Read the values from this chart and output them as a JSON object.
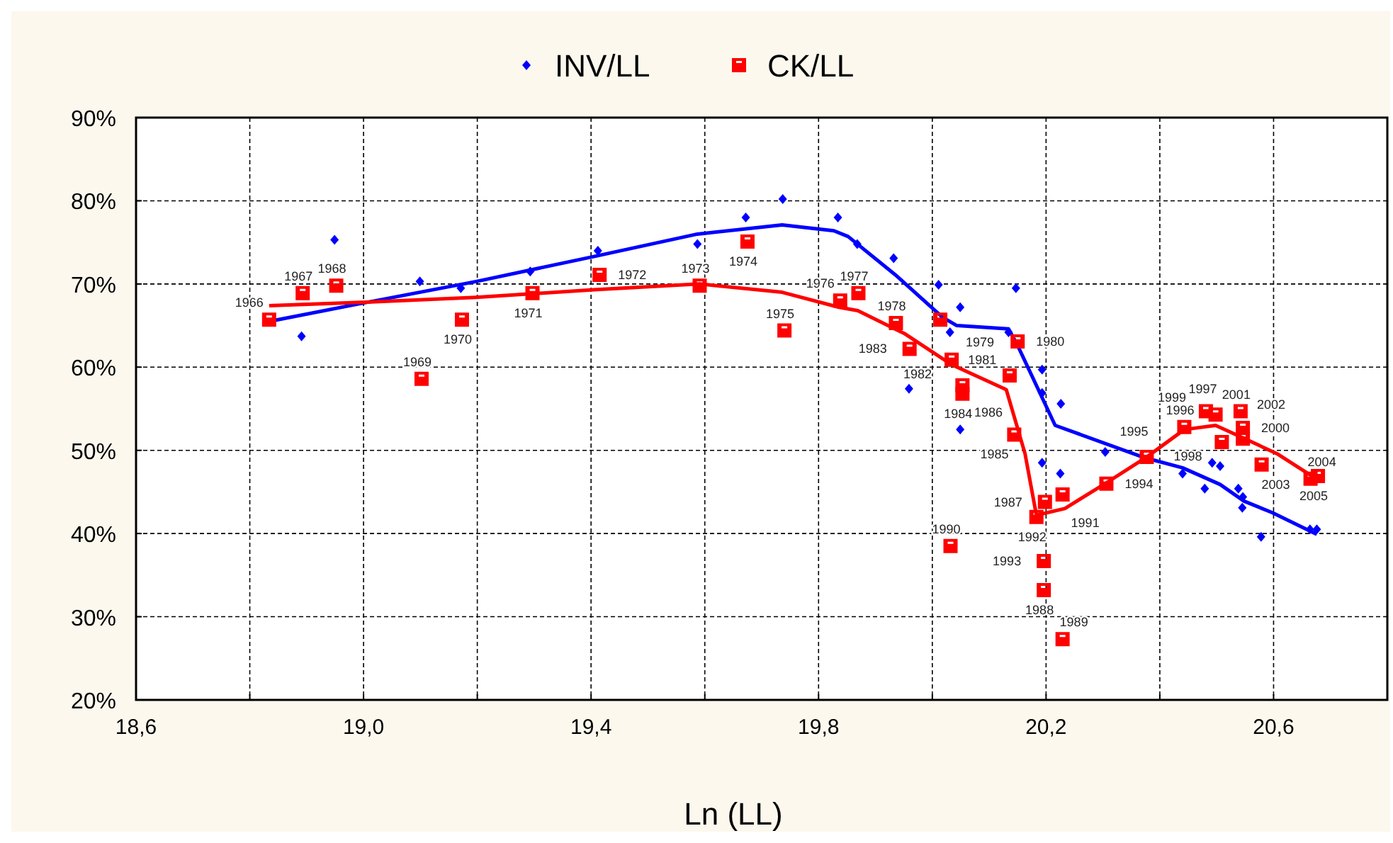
{
  "chart_data": {
    "type": "scatter",
    "xlabel": "Ln (LL)",
    "xlim": [
      18.6,
      20.8
    ],
    "xticks": [
      {
        "value": 18.6,
        "label": "18,6"
      },
      {
        "value": 18.8,
        "label": null
      },
      {
        "value": 19.0,
        "label": "19,0"
      },
      {
        "value": 19.2,
        "label": null
      },
      {
        "value": 19.4,
        "label": "19,4"
      },
      {
        "value": 19.6,
        "label": null
      },
      {
        "value": 19.8,
        "label": "19,8"
      },
      {
        "value": 20.0,
        "label": null
      },
      {
        "value": 20.2,
        "label": "20,2"
      },
      {
        "value": 20.4,
        "label": null
      },
      {
        "value": 20.6,
        "label": "20,6"
      },
      {
        "value": 20.8,
        "label": null
      }
    ],
    "ylim": [
      20,
      90
    ],
    "yticks": [
      {
        "value": 20,
        "label": "20%"
      },
      {
        "value": 30,
        "label": "30%"
      },
      {
        "value": 40,
        "label": "40%"
      },
      {
        "value": 50,
        "label": "50%"
      },
      {
        "value": 60,
        "label": "60%"
      },
      {
        "value": 70,
        "label": "70%"
      },
      {
        "value": 80,
        "label": "80%"
      },
      {
        "value": 90,
        "label": "90%"
      }
    ],
    "grid": true,
    "legend": "top",
    "series": [
      {
        "name": "INV/LL",
        "marker": "diamond",
        "color": "#0000ff",
        "x": [
          18.891,
          18.949,
          19.099,
          19.171,
          19.293,
          19.412,
          19.587,
          19.672,
          19.737,
          19.834,
          19.868,
          19.932,
          19.959,
          20.011,
          20.031,
          20.049,
          20.049,
          20.134,
          20.147,
          20.193,
          20.193,
          20.193,
          20.225,
          20.226,
          20.304,
          20.44,
          20.479,
          20.492,
          20.506,
          20.538,
          20.545,
          20.546,
          20.578,
          20.664,
          20.676
        ],
        "values": [
          63.7,
          75.3,
          70.3,
          69.5,
          71.5,
          74.0,
          74.8,
          78.0,
          80.2,
          78.0,
          74.8,
          73.1,
          57.4,
          69.9,
          64.2,
          67.2,
          52.5,
          64.2,
          69.5,
          59.7,
          56.9,
          48.5,
          47.2,
          55.6,
          49.8,
          47.2,
          45.4,
          48.5,
          48.1,
          45.4,
          43.1,
          44.4,
          39.6,
          40.5,
          40.5
        ]
      },
      {
        "name": "CK/LL",
        "marker": "square",
        "color": "#ff0000",
        "x": [
          18.834,
          18.893,
          18.952,
          19.102,
          19.173,
          19.297,
          19.415,
          19.591,
          19.675,
          19.74,
          19.838,
          19.87,
          19.936,
          20.014,
          20.15,
          20.053,
          20.034,
          19.96,
          20.053,
          20.144,
          20.136,
          20.198,
          20.196,
          20.229,
          20.032,
          20.229,
          20.183,
          20.196,
          20.306,
          20.377,
          20.443,
          20.498,
          20.509,
          20.481,
          20.546,
          20.542,
          20.546,
          20.579,
          20.665,
          20.678
        ],
        "values": [
          65.7,
          68.9,
          69.8,
          58.6,
          65.7,
          68.9,
          71.1,
          69.8,
          75.1,
          64.4,
          68.0,
          68.9,
          65.3,
          65.7,
          63.1,
          57.8,
          60.9,
          62.2,
          56.8,
          51.9,
          59.0,
          43.8,
          33.2,
          27.3,
          38.5,
          44.7,
          42.0,
          36.7,
          46.0,
          49.2,
          52.8,
          54.3,
          51.0,
          54.7,
          52.7,
          54.7,
          51.4,
          48.3,
          46.6,
          46.9
        ]
      },
      {
        "type": "line",
        "marker": "none",
        "color": "#0000ff",
        "x": [
          18.834,
          18.999,
          19.198,
          19.405,
          19.587,
          19.736,
          19.827,
          19.852,
          19.935,
          20.018,
          20.043,
          20.134,
          20.15,
          20.216,
          20.374,
          20.44,
          20.506,
          20.548,
          20.598,
          20.676
        ],
        "values": [
          65.5,
          67.7,
          70.3,
          73.3,
          76.0,
          77.1,
          76.4,
          75.7,
          71.1,
          66.0,
          65.0,
          64.6,
          62.6,
          53.0,
          49.1,
          47.9,
          45.9,
          43.9,
          42.5,
          39.9
        ]
      },
      {
        "type": "line",
        "marker": "none",
        "color": "#ff0000",
        "x": [
          18.834,
          18.999,
          19.198,
          19.405,
          19.591,
          19.736,
          19.836,
          19.869,
          19.952,
          20.034,
          20.13,
          20.163,
          20.183,
          20.233,
          20.306,
          20.377,
          20.443,
          20.498,
          20.546,
          20.606,
          20.672
        ],
        "values": [
          67.4,
          67.8,
          68.4,
          69.3,
          70.0,
          69.0,
          67.2,
          66.8,
          64.0,
          60.3,
          57.3,
          49.6,
          42.2,
          43.0,
          46.1,
          49.2,
          52.5,
          53.0,
          51.5,
          49.6,
          46.7
        ]
      }
    ],
    "annotations": [
      {
        "text": "1966",
        "x": 18.834,
        "y": 65.7
      },
      {
        "text": "1967",
        "x": 18.893,
        "y": 68.9
      },
      {
        "text": "1968",
        "x": 18.952,
        "y": 69.8
      },
      {
        "text": "1969",
        "x": 19.102,
        "y": 58.6
      },
      {
        "text": "1970",
        "x": 19.173,
        "y": 65.7
      },
      {
        "text": "1971",
        "x": 19.297,
        "y": 68.9
      },
      {
        "text": "1972",
        "x": 19.415,
        "y": 71.1
      },
      {
        "text": "1973",
        "x": 19.591,
        "y": 69.8
      },
      {
        "text": "1974",
        "x": 19.675,
        "y": 75.1
      },
      {
        "text": "1975",
        "x": 19.74,
        "y": 64.4
      },
      {
        "text": "1976",
        "x": 19.838,
        "y": 68.0
      },
      {
        "text": "1977",
        "x": 19.87,
        "y": 68.9
      },
      {
        "text": "1978",
        "x": 19.936,
        "y": 65.3
      },
      {
        "text": "1979",
        "x": 20.014,
        "y": 65.7
      },
      {
        "text": "1980",
        "x": 20.15,
        "y": 63.1
      },
      {
        "text": "1981",
        "x": 20.053,
        "y": 57.8
      },
      {
        "text": "1982",
        "x": 20.034,
        "y": 60.9
      },
      {
        "text": "1983",
        "x": 19.96,
        "y": 62.2
      },
      {
        "text": "1984",
        "x": 20.053,
        "y": 56.8
      },
      {
        "text": "1985",
        "x": 20.144,
        "y": 51.9
      },
      {
        "text": "1986",
        "x": 20.136,
        "y": 59.0
      },
      {
        "text": "1987",
        "x": 20.198,
        "y": 43.8
      },
      {
        "text": "1988",
        "x": 20.196,
        "y": 33.2
      },
      {
        "text": "1989",
        "x": 20.229,
        "y": 27.3
      },
      {
        "text": "1990",
        "x": 20.032,
        "y": 38.5
      },
      {
        "text": "1991",
        "x": 20.229,
        "y": 44.7
      },
      {
        "text": "1992",
        "x": 20.183,
        "y": 42.0
      },
      {
        "text": "1993",
        "x": 20.196,
        "y": 36.7
      },
      {
        "text": "1994",
        "x": 20.306,
        "y": 46.0
      },
      {
        "text": "1995",
        "x": 20.377,
        "y": 49.2
      },
      {
        "text": "1996",
        "x": 20.443,
        "y": 52.8
      },
      {
        "text": "1997",
        "x": 20.498,
        "y": 54.3
      },
      {
        "text": "1998",
        "x": 20.509,
        "y": 51.0
      },
      {
        "text": "1999",
        "x": 20.481,
        "y": 54.7
      },
      {
        "text": "2000",
        "x": 20.546,
        "y": 52.7
      },
      {
        "text": "2001",
        "x": 20.542,
        "y": 54.7
      },
      {
        "text": "2002",
        "x": 20.546,
        "y": 51.4
      },
      {
        "text": "2003",
        "x": 20.579,
        "y": 48.3
      },
      {
        "text": "2004",
        "x": 20.665,
        "y": 46.6
      },
      {
        "text": "2005",
        "x": 20.678,
        "y": 46.9
      }
    ]
  }
}
